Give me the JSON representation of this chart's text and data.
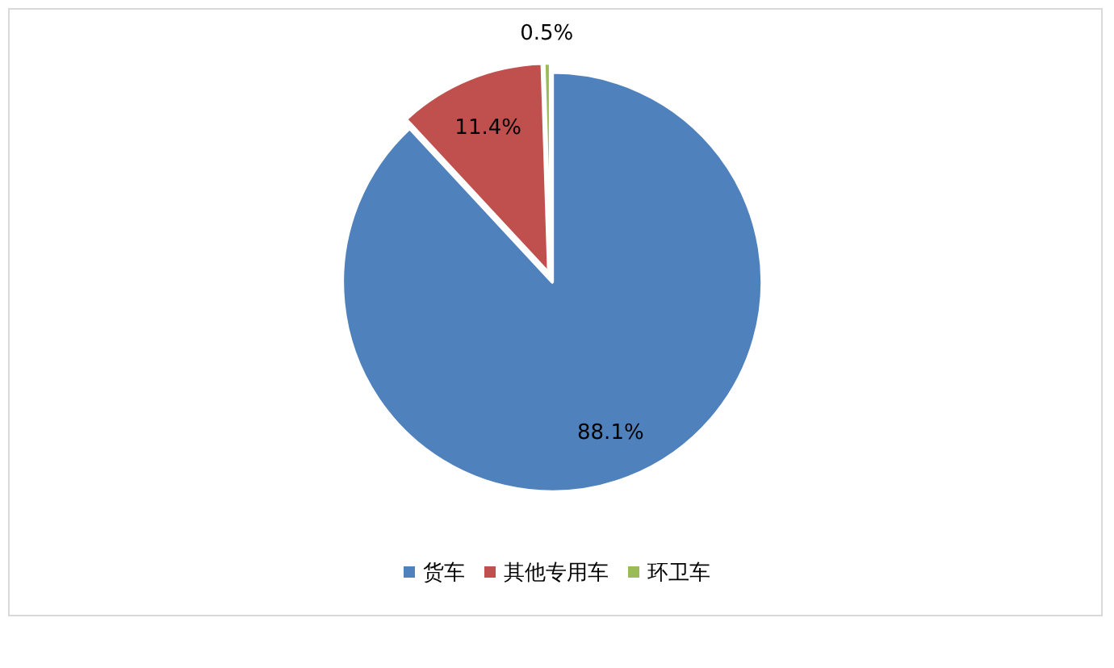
{
  "chart_data": {
    "type": "pie",
    "categories": [
      "货车",
      "其他专用车",
      "环卫车"
    ],
    "values": [
      88.1,
      11.4,
      0.5
    ],
    "colors": [
      "#4f81bd",
      "#c0504d",
      "#9bbb59"
    ],
    "value_labels": [
      "88.1%",
      "11.4%",
      "0.5%"
    ],
    "legend": "bottom"
  }
}
